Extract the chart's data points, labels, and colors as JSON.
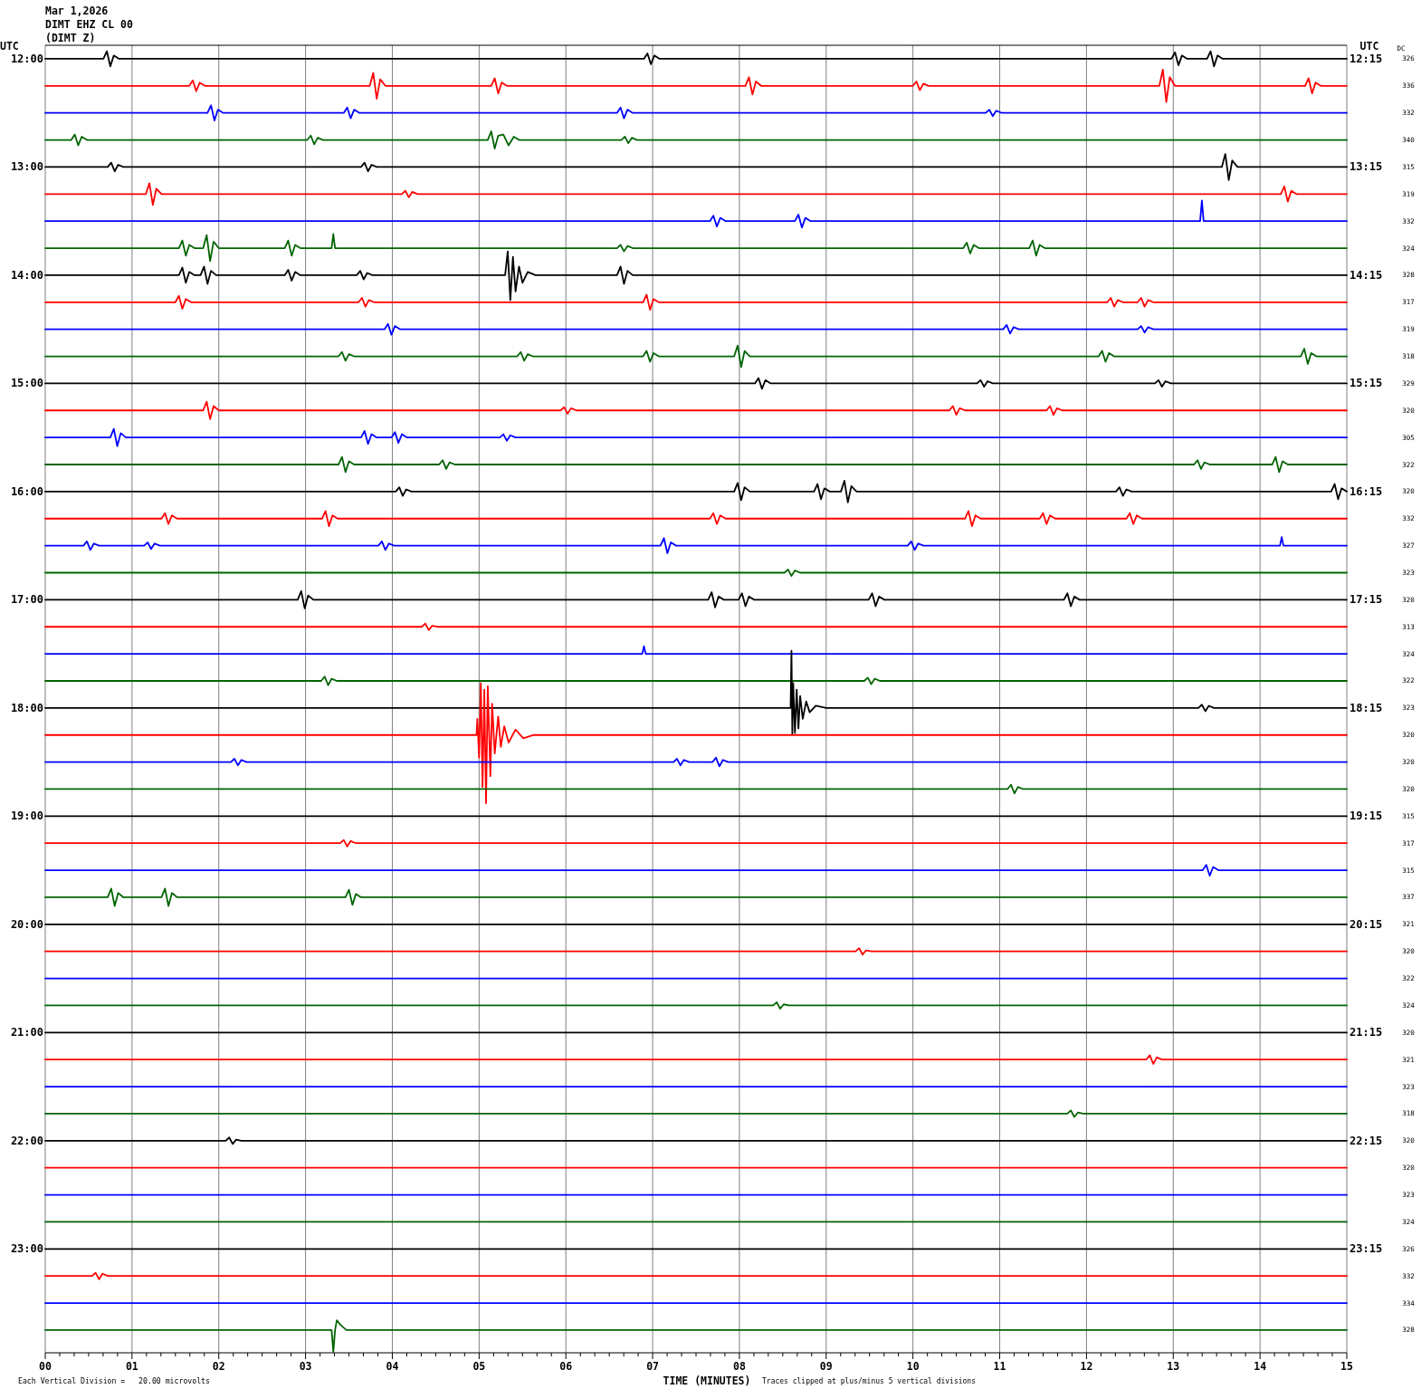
{
  "chart_data": {
    "type": "line",
    "title": "Mar 1,2026",
    "subtitle": "DIMT EHZ CL 00",
    "xlabel": "TIME (MINUTES)",
    "ylabel": "UTC",
    "y2label": "UTC",
    "annotations": [
      "(DIMT Z)",
      "Each Vertical Division =   20.00 microvolts",
      "Traces clipped at plus/minus 5 vertical divisions",
      "DC",
      "326",
      "336",
      "332",
      "340",
      "315",
      "319",
      "332",
      "324",
      "328",
      "317",
      "319",
      "318",
      "329",
      "320",
      "305",
      "322",
      "320",
      "332",
      "327",
      "323",
      "320",
      "313",
      "324",
      "322",
      "323",
      "320",
      "320",
      "320",
      "315",
      "317",
      "315",
      "337",
      "321",
      "320",
      "322",
      "324",
      "320",
      "321",
      "323",
      "318",
      "320",
      "320",
      "323",
      "324",
      "326",
      "332",
      "334",
      "328"
    ],
    "grid": "x",
    "xlim": [
      0,
      15
    ],
    "xticks": [
      {
        "value": 0,
        "label": "00"
      },
      {
        "value": 0.167,
        "label": null
      },
      {
        "value": 0.333,
        "label": null
      },
      {
        "value": 0.5,
        "label": null
      },
      {
        "value": 0.667,
        "label": null
      },
      {
        "value": 0.833,
        "label": null
      },
      {
        "value": 1,
        "label": "01"
      },
      {
        "value": 1.167,
        "label": null
      },
      {
        "value": 1.333,
        "label": null
      },
      {
        "value": 1.5,
        "label": null
      },
      {
        "value": 1.667,
        "label": null
      },
      {
        "value": 1.833,
        "label": null
      },
      {
        "value": 2,
        "label": "02"
      },
      {
        "value": 2.167,
        "label": null
      },
      {
        "value": 2.333,
        "label": null
      },
      {
        "value": 2.5,
        "label": null
      },
      {
        "value": 2.667,
        "label": null
      },
      {
        "value": 2.833,
        "label": null
      },
      {
        "value": 3,
        "label": "03"
      },
      {
        "value": 3.167,
        "label": null
      },
      {
        "value": 3.333,
        "label": null
      },
      {
        "value": 3.5,
        "label": null
      },
      {
        "value": 3.667,
        "label": null
      },
      {
        "value": 3.833,
        "label": null
      },
      {
        "value": 4,
        "label": "04"
      },
      {
        "value": 4.167,
        "label": null
      },
      {
        "value": 4.333,
        "label": null
      },
      {
        "value": 4.5,
        "label": null
      },
      {
        "value": 4.667,
        "label": null
      },
      {
        "value": 4.833,
        "label": null
      },
      {
        "value": 5,
        "label": "05"
      },
      {
        "value": 5.167,
        "label": null
      },
      {
        "value": 5.333,
        "label": null
      },
      {
        "value": 5.5,
        "label": null
      },
      {
        "value": 5.667,
        "label": null
      },
      {
        "value": 5.833,
        "label": null
      },
      {
        "value": 6,
        "label": "06"
      },
      {
        "value": 6.167,
        "label": null
      },
      {
        "value": 6.333,
        "label": null
      },
      {
        "value": 6.5,
        "label": null
      },
      {
        "value": 6.667,
        "label": null
      },
      {
        "value": 6.833,
        "label": null
      },
      {
        "value": 7,
        "label": "07"
      },
      {
        "value": 7.167,
        "label": null
      },
      {
        "value": 7.333,
        "label": null
      },
      {
        "value": 7.5,
        "label": null
      },
      {
        "value": 7.667,
        "label": null
      },
      {
        "value": 7.833,
        "label": null
      },
      {
        "value": 8,
        "label": "08"
      },
      {
        "value": 8.167,
        "label": null
      },
      {
        "value": 8.333,
        "label": null
      },
      {
        "value": 8.5,
        "label": null
      },
      {
        "value": 8.667,
        "label": null
      },
      {
        "value": 8.833,
        "label": null
      },
      {
        "value": 9,
        "label": "09"
      },
      {
        "value": 9.167,
        "label": null
      },
      {
        "value": 9.333,
        "label": null
      },
      {
        "value": 9.5,
        "label": null
      },
      {
        "value": 9.667,
        "label": null
      },
      {
        "value": 9.833,
        "label": null
      },
      10,
      {
        "value": 10.167,
        "label": null
      },
      {
        "value": 10.333,
        "label": null
      },
      {
        "value": 10.5,
        "label": null
      },
      {
        "value": 10.667,
        "label": null
      },
      {
        "value": 10.833,
        "label": null
      },
      11,
      {
        "value": 11.167,
        "label": null
      },
      {
        "value": 11.333,
        "label": null
      },
      {
        "value": 11.5,
        "label": null
      },
      {
        "value": 11.667,
        "label": null
      },
      {
        "value": 11.833,
        "label": null
      },
      12,
      {
        "value": 12.167,
        "label": null
      },
      {
        "value": 12.333,
        "label": null
      },
      {
        "value": 12.5,
        "label": null
      },
      {
        "value": 12.667,
        "label": null
      },
      {
        "value": 12.833,
        "label": null
      },
      13,
      {
        "value": 13.167,
        "label": null
      },
      {
        "value": 13.333,
        "label": null
      },
      {
        "value": 13.5,
        "label": null
      },
      {
        "value": 13.667,
        "label": null
      },
      {
        "value": 13.833,
        "label": null
      },
      14,
      {
        "value": 14.167,
        "label": null
      },
      {
        "value": 14.333,
        "label": null
      },
      {
        "value": 14.5,
        "label": null
      },
      {
        "value": 14.667,
        "label": null
      },
      {
        "value": 14.833,
        "label": null
      },
      15
    ],
    "ylim": [
      23.96,
      11.875
    ],
    "yticks": [
      {
        "value": 12,
        "label": "12:00"
      },
      {
        "value": 13,
        "label": "13:00"
      },
      {
        "value": 14,
        "label": "14:00"
      },
      {
        "value": 15,
        "label": "15:00"
      },
      {
        "value": 16,
        "label": "16:00"
      },
      {
        "value": 17,
        "label": "17:00"
      },
      {
        "value": 18,
        "label": "18:00"
      },
      {
        "value": 19,
        "label": "19:00"
      },
      {
        "value": 20,
        "label": "20:00"
      },
      {
        "value": 21,
        "label": "21:00"
      },
      {
        "value": 22,
        "label": "22:00"
      },
      {
        "value": 23,
        "label": "23:00"
      }
    ],
    "y2lim": [
      24.21,
      12.125
    ],
    "y2ticks": [
      {
        "value": 12.25,
        "label": "12:15"
      },
      {
        "value": 13.25,
        "label": "13:15"
      },
      {
        "value": 14.25,
        "label": "14:15"
      },
      {
        "value": 15.25,
        "label": "15:15"
      },
      {
        "value": 16.25,
        "label": "16:15"
      },
      {
        "value": 17.25,
        "label": "17:15"
      },
      {
        "value": 18.25,
        "label": "18:15"
      },
      {
        "value": 19.25,
        "label": "19:15"
      },
      {
        "value": 20.25,
        "label": "20:15"
      },
      {
        "value": 21.25,
        "label": "21:15"
      },
      {
        "value": 22.25,
        "label": "22:15"
      },
      {
        "value": 23.25,
        "label": "23:15"
      }
    ],
    "series": [
      {
        "color": "#000000",
        "x": [
          0,
          0.67,
          0.71,
          0.75,
          0.79,
          0.85,
          6.9,
          6.94,
          6.98,
          7.02,
          7.08,
          12.98,
          13.02,
          13.06,
          13.1,
          13.16,
          13.39,
          13.43,
          13.47,
          13.51,
          13.57,
          15
        ],
        "values": [
          12,
          12,
          11.93,
          12.07,
          11.97,
          12,
          12,
          11.95,
          12.05,
          11.97,
          12,
          12,
          11.94,
          12.06,
          11.97,
          12,
          12,
          11.93,
          12.07,
          11.97,
          12,
          12
        ]
      },
      {
        "color": "#ff0000",
        "x": [
          0,
          1.66,
          1.7,
          1.74,
          1.78,
          1.84,
          3.74,
          3.78,
          3.82,
          3.86,
          3.92,
          5.14,
          5.18,
          5.22,
          5.26,
          5.32,
          8.07,
          8.11,
          8.15,
          8.19,
          8.25,
          10,
          10.04,
          10.08,
          10.12,
          10.18,
          12.84,
          12.88,
          12.92,
          12.96,
          13.02,
          14.52,
          14.56,
          14.6,
          14.64,
          14.7,
          15
        ],
        "values": [
          12.25,
          12.25,
          12.2,
          12.3,
          12.22,
          12.25,
          12.25,
          12.13,
          12.37,
          12.19,
          12.25,
          12.25,
          12.18,
          12.32,
          12.22,
          12.25,
          12.25,
          12.17,
          12.33,
          12.21,
          12.25,
          12.25,
          12.21,
          12.29,
          12.23,
          12.25,
          12.25,
          12.1,
          12.4,
          12.17,
          12.25,
          12.25,
          12.18,
          12.32,
          12.22,
          12.25,
          12.25
        ]
      },
      {
        "color": "#0000ff",
        "x": [
          0,
          1.87,
          1.91,
          1.95,
          1.99,
          2.05,
          3.44,
          3.48,
          3.52,
          3.56,
          3.62,
          6.59,
          6.63,
          6.67,
          6.71,
          6.77,
          10.84,
          10.88,
          10.92,
          10.96,
          11.02,
          15
        ],
        "values": [
          12.5,
          12.5,
          12.43,
          12.57,
          12.47,
          12.5,
          12.5,
          12.45,
          12.55,
          12.47,
          12.5,
          12.5,
          12.45,
          12.55,
          12.47,
          12.5,
          12.5,
          12.47,
          12.53,
          12.48,
          12.5,
          12.5
        ]
      },
      {
        "color": "#006400",
        "x": [
          0,
          0.3,
          0.34,
          0.38,
          0.42,
          0.48,
          3.02,
          3.06,
          3.1,
          3.14,
          3.2,
          5.1,
          5.14,
          5.18,
          5.22,
          5.28,
          5.34,
          5.4,
          5.46,
          6.64,
          6.68,
          6.72,
          6.76,
          6.82,
          15
        ],
        "values": [
          12.75,
          12.75,
          12.7,
          12.8,
          12.72,
          12.75,
          12.75,
          12.71,
          12.79,
          12.73,
          12.75,
          12.75,
          12.67,
          12.83,
          12.71,
          12.7,
          12.8,
          12.72,
          12.75,
          12.75,
          12.72,
          12.78,
          12.73,
          12.75,
          12.75
        ]
      },
      {
        "color": "#000000",
        "x": [
          0,
          0.72,
          0.76,
          0.8,
          0.84,
          0.9,
          3.64,
          3.68,
          3.72,
          3.76,
          3.82,
          13.56,
          13.6,
          13.64,
          13.68,
          13.74,
          15
        ],
        "values": [
          13,
          13,
          12.96,
          13.04,
          12.98,
          13,
          13,
          12.96,
          13.04,
          12.98,
          13,
          13,
          12.88,
          13.12,
          12.94,
          13,
          13
        ]
      },
      {
        "color": "#ff0000",
        "x": [
          0,
          1.16,
          1.2,
          1.24,
          1.28,
          1.34,
          4.11,
          4.15,
          4.19,
          4.23,
          4.29,
          14.24,
          14.28,
          14.32,
          14.36,
          14.42,
          15
        ],
        "values": [
          13.25,
          13.25,
          13.15,
          13.35,
          13.2,
          13.25,
          13.25,
          13.22,
          13.28,
          13.23,
          13.25,
          13.25,
          13.18,
          13.32,
          13.22,
          13.25,
          13.25
        ]
      },
      {
        "color": "#0000ff",
        "x": [
          0,
          7.66,
          7.7,
          7.74,
          7.78,
          7.84,
          8.64,
          8.68,
          8.72,
          8.76,
          8.82,
          13.31,
          13.33,
          13.35,
          15
        ],
        "values": [
          13.5,
          13.5,
          13.45,
          13.55,
          13.47,
          13.5,
          13.5,
          13.44,
          13.56,
          13.47,
          13.5,
          13.5,
          13.31,
          13.5,
          13.5
        ]
      },
      {
        "color": "#006400",
        "x": [
          0,
          1.54,
          1.58,
          1.62,
          1.66,
          1.72,
          1.82,
          1.86,
          1.9,
          1.94,
          2,
          2.76,
          2.8,
          2.84,
          2.88,
          2.94,
          3.3,
          3.32,
          3.34,
          6.59,
          6.63,
          6.67,
          6.71,
          6.77,
          10.58,
          10.62,
          10.66,
          10.7,
          10.76,
          11.34,
          11.38,
          11.42,
          11.46,
          11.52,
          15
        ],
        "values": [
          13.75,
          13.75,
          13.68,
          13.82,
          13.72,
          13.75,
          13.75,
          13.63,
          13.87,
          13.69,
          13.75,
          13.75,
          13.68,
          13.82,
          13.72,
          13.75,
          13.75,
          13.62,
          13.75,
          13.75,
          13.72,
          13.78,
          13.73,
          13.75,
          13.75,
          13.7,
          13.8,
          13.72,
          13.75,
          13.75,
          13.68,
          13.82,
          13.72,
          13.75,
          13.75
        ]
      },
      {
        "color": "#000000",
        "x": [
          0,
          1.54,
          1.58,
          1.62,
          1.66,
          1.72,
          1.79,
          1.83,
          1.87,
          1.91,
          1.97,
          2.76,
          2.8,
          2.84,
          2.88,
          2.94,
          3.59,
          3.63,
          3.67,
          3.71,
          3.77,
          5.3,
          5.33,
          5.36,
          5.39,
          5.42,
          5.46,
          5.5,
          5.56,
          5.65,
          6.59,
          6.63,
          6.67,
          6.71,
          6.77,
          15
        ],
        "values": [
          14,
          14,
          13.93,
          14.07,
          13.97,
          14,
          14,
          13.92,
          14.08,
          13.96,
          14,
          14,
          13.95,
          14.05,
          13.97,
          14,
          14,
          13.96,
          14.04,
          13.98,
          14,
          14,
          13.78,
          14.23,
          13.83,
          14.15,
          13.92,
          14.07,
          13.97,
          14,
          14,
          13.92,
          14.08,
          13.96,
          14,
          14
        ]
      },
      {
        "color": "#ff0000",
        "x": [
          0,
          1.5,
          1.54,
          1.58,
          1.62,
          1.68,
          3.61,
          3.65,
          3.69,
          3.73,
          3.79,
          6.89,
          6.93,
          6.97,
          7.01,
          7.07,
          12.24,
          12.28,
          12.32,
          12.36,
          12.42,
          12.59,
          12.63,
          12.67,
          12.71,
          12.77,
          15
        ],
        "values": [
          14.25,
          14.25,
          14.19,
          14.31,
          14.22,
          14.25,
          14.25,
          14.21,
          14.29,
          14.23,
          14.25,
          14.25,
          14.18,
          14.32,
          14.22,
          14.25,
          14.25,
          14.21,
          14.29,
          14.23,
          14.25,
          14.25,
          14.21,
          14.29,
          14.23,
          14.25,
          14.25
        ]
      },
      {
        "color": "#0000ff",
        "x": [
          0,
          3.91,
          3.95,
          3.99,
          4.03,
          4.09,
          11.04,
          11.08,
          11.12,
          11.16,
          11.22,
          12.59,
          12.63,
          12.67,
          12.71,
          12.77,
          15
        ],
        "values": [
          14.5,
          14.5,
          14.45,
          14.55,
          14.47,
          14.5,
          14.5,
          14.46,
          14.54,
          14.48,
          14.5,
          14.5,
          14.47,
          14.53,
          14.48,
          14.5,
          14.5
        ]
      },
      {
        "color": "#006400",
        "x": [
          0,
          3.38,
          3.42,
          3.46,
          3.5,
          3.56,
          5.44,
          5.48,
          5.52,
          5.56,
          5.62,
          6.89,
          6.93,
          6.97,
          7.01,
          7.07,
          7.94,
          7.98,
          8.02,
          8.06,
          8.12,
          12.14,
          12.18,
          12.22,
          12.26,
          12.32,
          14.47,
          14.51,
          14.55,
          14.59,
          14.65,
          15
        ],
        "values": [
          14.75,
          14.75,
          14.71,
          14.79,
          14.73,
          14.75,
          14.75,
          14.71,
          14.79,
          14.73,
          14.75,
          14.75,
          14.7,
          14.8,
          14.72,
          14.75,
          14.75,
          14.65,
          14.85,
          14.7,
          14.75,
          14.75,
          14.7,
          14.8,
          14.72,
          14.75,
          14.75,
          14.68,
          14.82,
          14.72,
          14.75,
          14.75
        ]
      },
      {
        "color": "#000000",
        "x": [
          0,
          8.18,
          8.22,
          8.26,
          8.3,
          8.36,
          10.74,
          10.78,
          10.82,
          10.86,
          10.92,
          12.79,
          12.83,
          12.87,
          12.91,
          12.97,
          15
        ],
        "values": [
          15,
          15,
          14.95,
          15.05,
          14.97,
          15,
          15,
          14.97,
          15.03,
          14.98,
          15,
          15,
          14.97,
          15.03,
          14.98,
          15,
          15
        ]
      },
      {
        "color": "#ff0000",
        "x": [
          0,
          1.82,
          1.86,
          1.9,
          1.94,
          2,
          5.94,
          5.98,
          6.02,
          6.06,
          6.12,
          10.42,
          10.46,
          10.5,
          10.54,
          10.6,
          11.54,
          11.58,
          11.62,
          11.66,
          11.72,
          15
        ],
        "values": [
          15.25,
          15.25,
          15.17,
          15.33,
          15.21,
          15.25,
          15.25,
          15.22,
          15.28,
          15.23,
          15.25,
          15.25,
          15.21,
          15.29,
          15.23,
          15.25,
          15.25,
          15.21,
          15.29,
          15.23,
          15.25,
          15.25
        ]
      },
      {
        "color": "#0000ff",
        "x": [
          0,
          0.75,
          0.79,
          0.83,
          0.87,
          0.93,
          3.64,
          3.68,
          3.72,
          3.76,
          3.82,
          3.99,
          4.03,
          4.07,
          4.11,
          4.17,
          5.24,
          5.28,
          5.32,
          5.36,
          5.42,
          15
        ],
        "values": [
          15.5,
          15.5,
          15.42,
          15.58,
          15.46,
          15.5,
          15.5,
          15.44,
          15.56,
          15.47,
          15.5,
          15.5,
          15.45,
          15.55,
          15.47,
          15.5,
          15.5,
          15.47,
          15.53,
          15.48,
          15.5,
          15.5
        ]
      },
      {
        "color": "#006400",
        "x": [
          0,
          3.38,
          3.42,
          3.46,
          3.5,
          3.56,
          4.54,
          4.58,
          4.62,
          4.66,
          4.72,
          13.24,
          13.28,
          13.32,
          13.36,
          13.42,
          14.14,
          14.18,
          14.22,
          14.26,
          14.32,
          15
        ],
        "values": [
          15.75,
          15.75,
          15.68,
          15.82,
          15.72,
          15.75,
          15.75,
          15.71,
          15.79,
          15.73,
          15.75,
          15.75,
          15.71,
          15.79,
          15.73,
          15.75,
          15.75,
          15.68,
          15.82,
          15.72,
          15.75,
          15.75
        ]
      },
      {
        "color": "#000000",
        "x": [
          0,
          4.04,
          4.08,
          4.12,
          4.16,
          4.22,
          7.94,
          7.98,
          8.02,
          8.06,
          8.12,
          8.86,
          8.9,
          8.94,
          8.98,
          9.04,
          9.17,
          9.21,
          9.25,
          9.29,
          9.35,
          12.34,
          12.38,
          12.42,
          12.46,
          12.52,
          14.82,
          14.86,
          14.9,
          14.94,
          15
        ],
        "values": [
          16,
          16,
          15.96,
          16.04,
          15.98,
          16,
          16,
          15.92,
          16.08,
          15.96,
          16,
          16,
          15.93,
          16.07,
          15.97,
          16,
          16,
          15.9,
          16.1,
          15.95,
          16,
          16,
          15.96,
          16.04,
          15.98,
          16,
          16,
          15.93,
          16.07,
          15.97,
          16
        ]
      },
      {
        "color": "#ff0000",
        "x": [
          0,
          1.34,
          1.38,
          1.42,
          1.46,
          1.52,
          3.19,
          3.23,
          3.27,
          3.31,
          3.37,
          7.66,
          7.7,
          7.74,
          7.78,
          7.84,
          10.6,
          10.64,
          10.68,
          10.72,
          10.78,
          11.46,
          11.5,
          11.54,
          11.58,
          11.64,
          12.46,
          12.5,
          12.54,
          12.58,
          12.64,
          15
        ],
        "values": [
          16.25,
          16.25,
          16.2,
          16.3,
          16.22,
          16.25,
          16.25,
          16.18,
          16.32,
          16.22,
          16.25,
          16.25,
          16.2,
          16.3,
          16.22,
          16.25,
          16.25,
          16.18,
          16.32,
          16.22,
          16.25,
          16.25,
          16.2,
          16.3,
          16.22,
          16.25,
          16.25,
          16.2,
          16.3,
          16.22,
          16.25,
          16.25
        ]
      },
      {
        "color": "#0000ff",
        "x": [
          0,
          0.44,
          0.48,
          0.52,
          0.56,
          0.62,
          1.14,
          1.18,
          1.22,
          1.26,
          1.32,
          3.84,
          3.88,
          3.92,
          3.96,
          4.02,
          7.09,
          7.13,
          7.17,
          7.21,
          7.27,
          9.94,
          9.98,
          10.02,
          10.06,
          10.12,
          14.23,
          14.25,
          14.27,
          15
        ],
        "values": [
          16.5,
          16.5,
          16.46,
          16.54,
          16.48,
          16.5,
          16.5,
          16.47,
          16.53,
          16.48,
          16.5,
          16.5,
          16.46,
          16.54,
          16.48,
          16.5,
          16.5,
          16.43,
          16.57,
          16.47,
          16.5,
          16.5,
          16.46,
          16.54,
          16.48,
          16.5,
          16.5,
          16.42,
          16.5,
          16.5
        ]
      },
      {
        "color": "#006400",
        "x": [
          0,
          8.52,
          8.56,
          8.6,
          8.64,
          8.7,
          15
        ],
        "values": [
          16.75,
          16.75,
          16.72,
          16.78,
          16.73,
          16.75,
          16.75
        ]
      },
      {
        "color": "#000000",
        "x": [
          0,
          2.91,
          2.95,
          2.99,
          3.03,
          3.09,
          7.64,
          7.68,
          7.72,
          7.76,
          7.82,
          7.99,
          8.03,
          8.07,
          8.11,
          8.17,
          9.49,
          9.53,
          9.57,
          9.61,
          9.67,
          11.74,
          11.78,
          11.82,
          11.86,
          11.92,
          15
        ],
        "values": [
          17,
          17,
          16.92,
          17.08,
          16.96,
          17,
          17,
          16.93,
          17.07,
          16.97,
          17,
          17,
          16.94,
          17.06,
          16.97,
          17,
          17,
          16.94,
          17.06,
          16.97,
          17,
          17,
          16.94,
          17.06,
          16.97,
          17,
          17
        ]
      },
      {
        "color": "#ff0000",
        "x": [
          0,
          4.34,
          4.38,
          4.42,
          4.46,
          4.52,
          15
        ],
        "values": [
          17.25,
          17.25,
          17.22,
          17.28,
          17.24,
          17.25,
          17.25
        ]
      },
      {
        "color": "#0000ff",
        "x": [
          0,
          6.88,
          6.9,
          6.92,
          15
        ],
        "values": [
          17.5,
          17.5,
          17.43,
          17.5,
          17.5
        ]
      },
      {
        "color": "#006400",
        "x": [
          0,
          3.18,
          3.22,
          3.26,
          3.3,
          3.36,
          9.44,
          9.48,
          9.52,
          9.56,
          9.62,
          15
        ],
        "values": [
          17.75,
          17.75,
          17.71,
          17.79,
          17.73,
          17.75,
          17.75,
          17.72,
          17.78,
          17.73,
          17.75,
          17.75
        ]
      },
      {
        "color": "#000000",
        "x": [
          0,
          8.59,
          8.6,
          8.61,
          8.62,
          8.64,
          8.66,
          8.68,
          8.7,
          8.73,
          8.77,
          8.81,
          8.88,
          9,
          13.29,
          13.33,
          13.37,
          13.41,
          13.47,
          15
        ],
        "values": [
          18,
          18,
          17.47,
          18.24,
          17.77,
          18.23,
          17.83,
          18.19,
          17.89,
          18.1,
          17.94,
          18.04,
          17.98,
          18,
          18,
          17.97,
          18.03,
          17.98,
          18,
          18
        ]
      },
      {
        "color": "#ff0000",
        "x": [
          0,
          4.97,
          4.98,
          5,
          5.02,
          5.04,
          5.06,
          5.08,
          5.1,
          5.13,
          5.15,
          5.18,
          5.22,
          5.25,
          5.29,
          5.34,
          5.42,
          5.51,
          5.63,
          15
        ],
        "values": [
          18.25,
          18.25,
          18.1,
          18.46,
          17.77,
          18.73,
          17.83,
          18.88,
          17.8,
          18.63,
          17.96,
          18.42,
          18.08,
          18.36,
          18.17,
          18.32,
          18.2,
          18.28,
          18.25,
          18.25
        ]
      },
      {
        "color": "#0000ff",
        "x": [
          0,
          2.14,
          2.18,
          2.22,
          2.26,
          2.32,
          7.24,
          7.28,
          7.32,
          7.36,
          7.42,
          7.69,
          7.73,
          7.77,
          7.81,
          7.87,
          15
        ],
        "values": [
          18.5,
          18.5,
          18.47,
          18.53,
          18.48,
          18.5,
          18.5,
          18.47,
          18.53,
          18.48,
          18.5,
          18.5,
          18.46,
          18.54,
          18.48,
          18.5,
          18.5
        ]
      },
      {
        "color": "#006400",
        "x": [
          0,
          11.09,
          11.13,
          11.17,
          11.21,
          11.27,
          15
        ],
        "values": [
          18.75,
          18.75,
          18.71,
          18.79,
          18.73,
          18.75,
          18.75
        ]
      },
      {
        "color": "#000000",
        "x": [
          0,
          15
        ],
        "values": [
          19,
          19
        ]
      },
      {
        "color": "#ff0000",
        "x": [
          0,
          3.4,
          3.44,
          3.48,
          3.52,
          3.58,
          15
        ],
        "values": [
          19.25,
          19.25,
          19.22,
          19.28,
          19.23,
          19.25,
          19.25
        ]
      },
      {
        "color": "#0000ff",
        "x": [
          0,
          13.34,
          13.38,
          13.42,
          13.46,
          13.52,
          15
        ],
        "values": [
          19.5,
          19.5,
          19.45,
          19.55,
          19.47,
          19.5,
          19.5
        ]
      },
      {
        "color": "#006400",
        "x": [
          0,
          0.72,
          0.76,
          0.8,
          0.84,
          0.9,
          1.34,
          1.38,
          1.42,
          1.46,
          1.52,
          3.46,
          3.5,
          3.54,
          3.58,
          3.64,
          15
        ],
        "values": [
          19.75,
          19.75,
          19.67,
          19.83,
          19.71,
          19.75,
          19.75,
          19.67,
          19.83,
          19.71,
          19.75,
          19.75,
          19.68,
          19.82,
          19.72,
          19.75,
          19.75
        ]
      },
      {
        "color": "#000000",
        "x": [
          0,
          15
        ],
        "values": [
          20,
          20
        ]
      },
      {
        "color": "#ff0000",
        "x": [
          0,
          9.34,
          9.38,
          9.42,
          9.46,
          9.52,
          15
        ],
        "values": [
          20.25,
          20.25,
          20.22,
          20.28,
          20.24,
          20.25,
          20.25
        ]
      },
      {
        "color": "#0000ff",
        "x": [
          0,
          15
        ],
        "values": [
          20.5,
          20.5
        ]
      },
      {
        "color": "#006400",
        "x": [
          0,
          8.39,
          8.43,
          8.47,
          8.51,
          8.57,
          15
        ],
        "values": [
          20.75,
          20.75,
          20.72,
          20.78,
          20.74,
          20.75,
          20.75
        ]
      },
      {
        "color": "#000000",
        "x": [
          0,
          15
        ],
        "values": [
          21,
          21
        ]
      },
      {
        "color": "#ff0000",
        "x": [
          0,
          12.69,
          12.73,
          12.77,
          12.81,
          12.87,
          15
        ],
        "values": [
          21.25,
          21.25,
          21.21,
          21.29,
          21.23,
          21.25,
          21.25
        ]
      },
      {
        "color": "#0000ff",
        "x": [
          0,
          15
        ],
        "values": [
          21.5,
          21.5
        ]
      },
      {
        "color": "#006400",
        "x": [
          0,
          11.78,
          11.82,
          11.86,
          11.9,
          11.96,
          15
        ],
        "values": [
          21.75,
          21.75,
          21.72,
          21.78,
          21.74,
          21.75,
          21.75
        ]
      },
      {
        "color": "#000000",
        "x": [
          0,
          2.08,
          2.12,
          2.16,
          2.2,
          2.26,
          15
        ],
        "values": [
          22,
          22,
          21.97,
          22.03,
          21.99,
          22,
          22
        ]
      },
      {
        "color": "#ff0000",
        "x": [
          0,
          15
        ],
        "values": [
          22.25,
          22.25
        ]
      },
      {
        "color": "#0000ff",
        "x": [
          0,
          15
        ],
        "values": [
          22.5,
          22.5
        ]
      },
      {
        "color": "#006400",
        "x": [
          0,
          15
        ],
        "values": [
          22.75,
          22.75
        ]
      },
      {
        "color": "#000000",
        "x": [
          0,
          15
        ],
        "values": [
          23,
          23
        ]
      },
      {
        "color": "#ff0000",
        "x": [
          0,
          0.54,
          0.58,
          0.62,
          0.66,
          0.72,
          15
        ],
        "values": [
          23.25,
          23.25,
          23.22,
          23.28,
          23.23,
          23.25,
          23.25
        ]
      },
      {
        "color": "#0000ff",
        "x": [
          0,
          15
        ],
        "values": [
          23.5,
          23.5
        ]
      },
      {
        "color": "#006400",
        "x": [
          0,
          3.3,
          3.32,
          3.34,
          3.36,
          3.4,
          3.47,
          15
        ],
        "values": [
          23.75,
          23.75,
          23.95,
          23.75,
          23.66,
          23.7,
          23.75,
          23.75
        ]
      }
    ]
  }
}
